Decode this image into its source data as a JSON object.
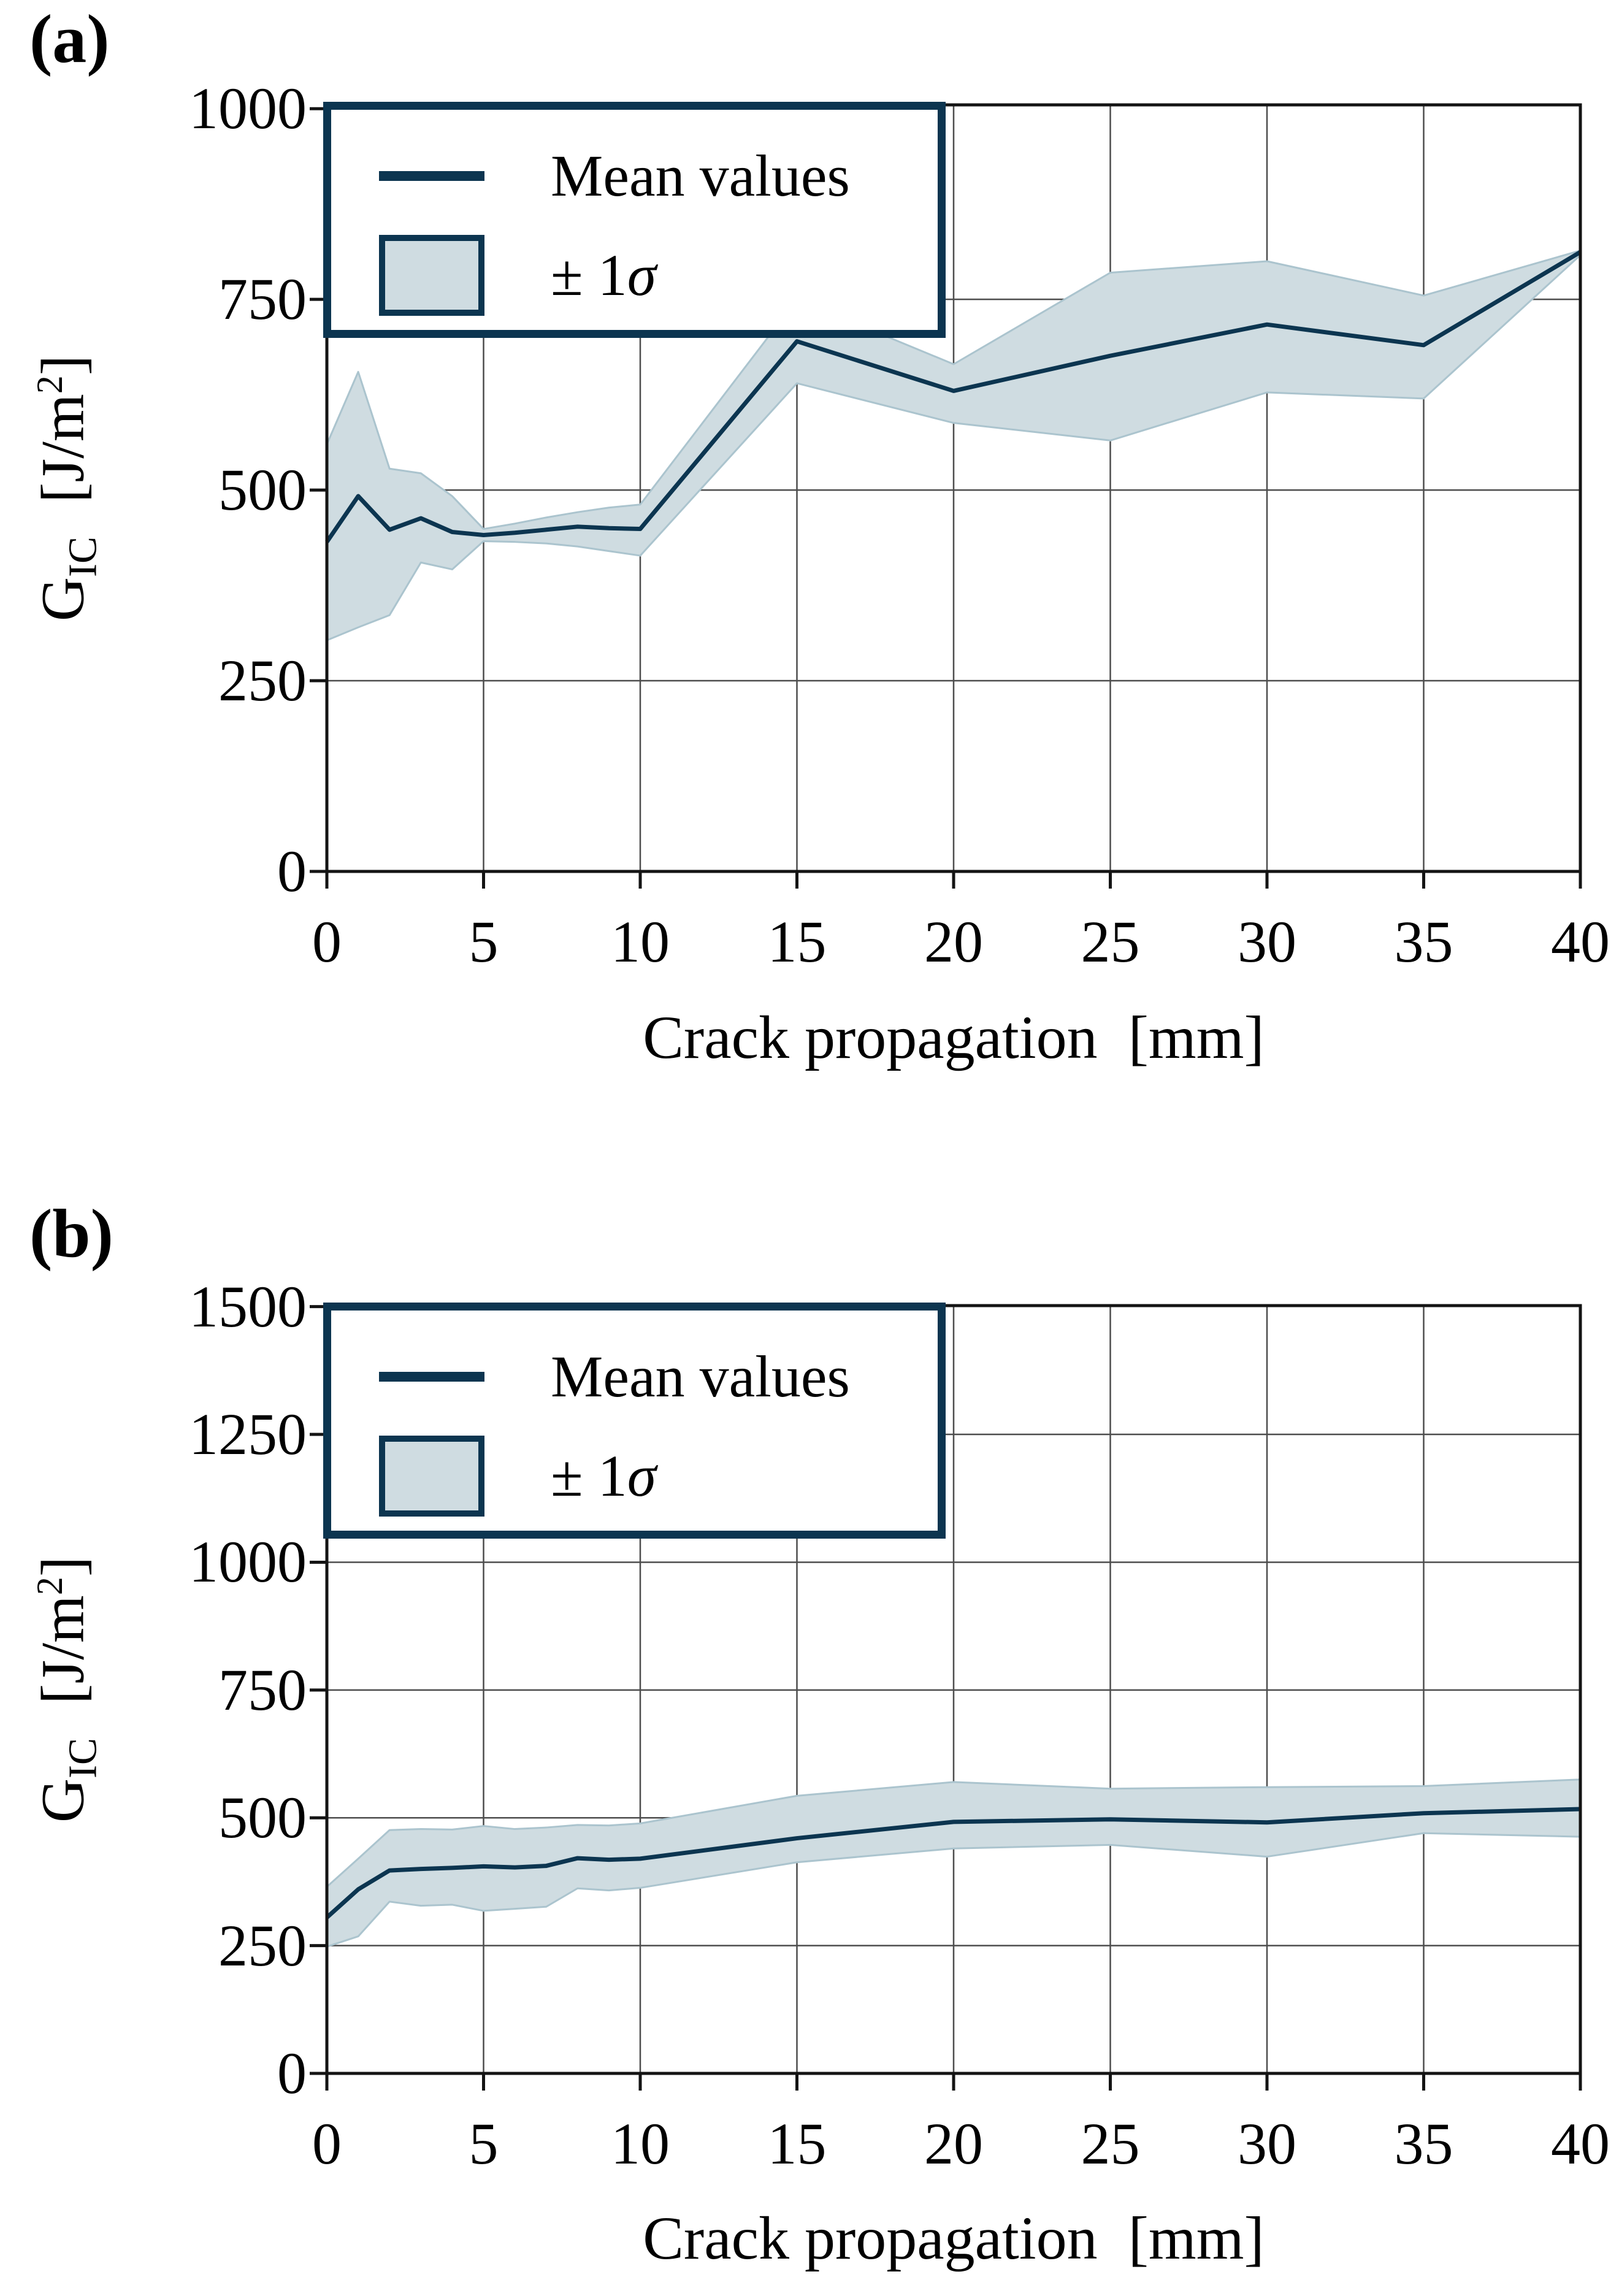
{
  "page": {
    "background": "#ffffff"
  },
  "colors": {
    "mean_line": "#0c3550",
    "band_fill": "#cfdce1",
    "band_edge": "#abc4ce",
    "grid": "#4d4d4d",
    "spine": "#141414",
    "text": "#000000",
    "legend_border": "#0c3550",
    "legend_background": "#ffffff"
  },
  "panels": [
    {
      "tag": "(a)",
      "legend": {
        "mean_label": "Mean values",
        "sigma_prefix": "± 1",
        "sigma_symbol": "σ"
      },
      "xlabel": "Crack propagation  [mm]",
      "ylabel": {
        "symbol": "G",
        "subscript": "IC",
        "unit_open": "[J/m",
        "unit_sup": "2",
        "unit_close": "]"
      }
    },
    {
      "tag": "(b)",
      "legend": {
        "mean_label": "Mean values",
        "sigma_prefix": "± 1",
        "sigma_symbol": "σ"
      },
      "xlabel": "Crack propagation  [mm]",
      "ylabel": {
        "symbol": "G",
        "subscript": "IC",
        "unit_open": "[J/m",
        "unit_sup": "2",
        "unit_close": "]"
      }
    }
  ],
  "chart_data": [
    {
      "type": "line",
      "panel": "(a)",
      "title": "",
      "xlabel": "Crack propagation [mm]",
      "ylabel": "G_IC [J/m^2]",
      "xlim": [
        0,
        40
      ],
      "ylim": [
        0,
        1005
      ],
      "x_ticks": [
        0,
        5,
        10,
        15,
        20,
        25,
        30,
        35,
        40
      ],
      "y_ticks": [
        0,
        250,
        500,
        750,
        1000
      ],
      "grid": true,
      "legend_position": "upper left",
      "x": [
        0,
        1,
        2,
        3,
        4,
        5,
        6,
        7,
        8,
        9,
        10,
        15,
        20,
        25,
        30,
        35,
        40
      ],
      "series": [
        {
          "name": "Mean values",
          "values": [
            432,
            492,
            448,
            463,
            445,
            441,
            444,
            448,
            452,
            450,
            449,
            695,
            630,
            676,
            717,
            690,
            812
          ]
        },
        {
          "name": "+1 sigma (band upper)",
          "values": [
            560,
            655,
            528,
            522,
            492,
            449,
            456,
            464,
            471,
            477,
            481,
            750,
            665,
            785,
            800,
            755,
            814
          ]
        },
        {
          "name": "-1 sigma (band lower)",
          "values": [
            303,
            320,
            336,
            405,
            396,
            433,
            432,
            430,
            426,
            420,
            414,
            640,
            588,
            565,
            628,
            620,
            808
          ]
        }
      ]
    },
    {
      "type": "line",
      "panel": "(b)",
      "title": "",
      "xlabel": "Crack propagation [mm]",
      "ylabel": "G_IC [J/m^2]",
      "xlim": [
        0,
        40
      ],
      "ylim": [
        0,
        1502
      ],
      "x_ticks": [
        0,
        5,
        10,
        15,
        20,
        25,
        30,
        35,
        40
      ],
      "y_ticks": [
        0,
        250,
        500,
        750,
        1000,
        1250,
        1500
      ],
      "grid": true,
      "legend_position": "upper left",
      "x": [
        0,
        1,
        2,
        3,
        4,
        5,
        6,
        7,
        8,
        9,
        10,
        15,
        20,
        25,
        30,
        35,
        40
      ],
      "series": [
        {
          "name": "Mean values",
          "values": [
            305,
            360,
            397,
            400,
            402,
            405,
            403,
            406,
            421,
            418,
            420,
            460,
            492,
            497,
            491,
            509,
            517
          ]
        },
        {
          "name": "+1 sigma (band upper)",
          "values": [
            365,
            420,
            476,
            478,
            477,
            484,
            478,
            481,
            486,
            485,
            489,
            543,
            570,
            557,
            560,
            562,
            575
          ]
        },
        {
          "name": "-1 sigma (band lower)",
          "values": [
            248,
            268,
            336,
            328,
            330,
            318,
            322,
            326,
            362,
            358,
            363,
            413,
            440,
            447,
            424,
            470,
            463
          ]
        }
      ]
    }
  ]
}
